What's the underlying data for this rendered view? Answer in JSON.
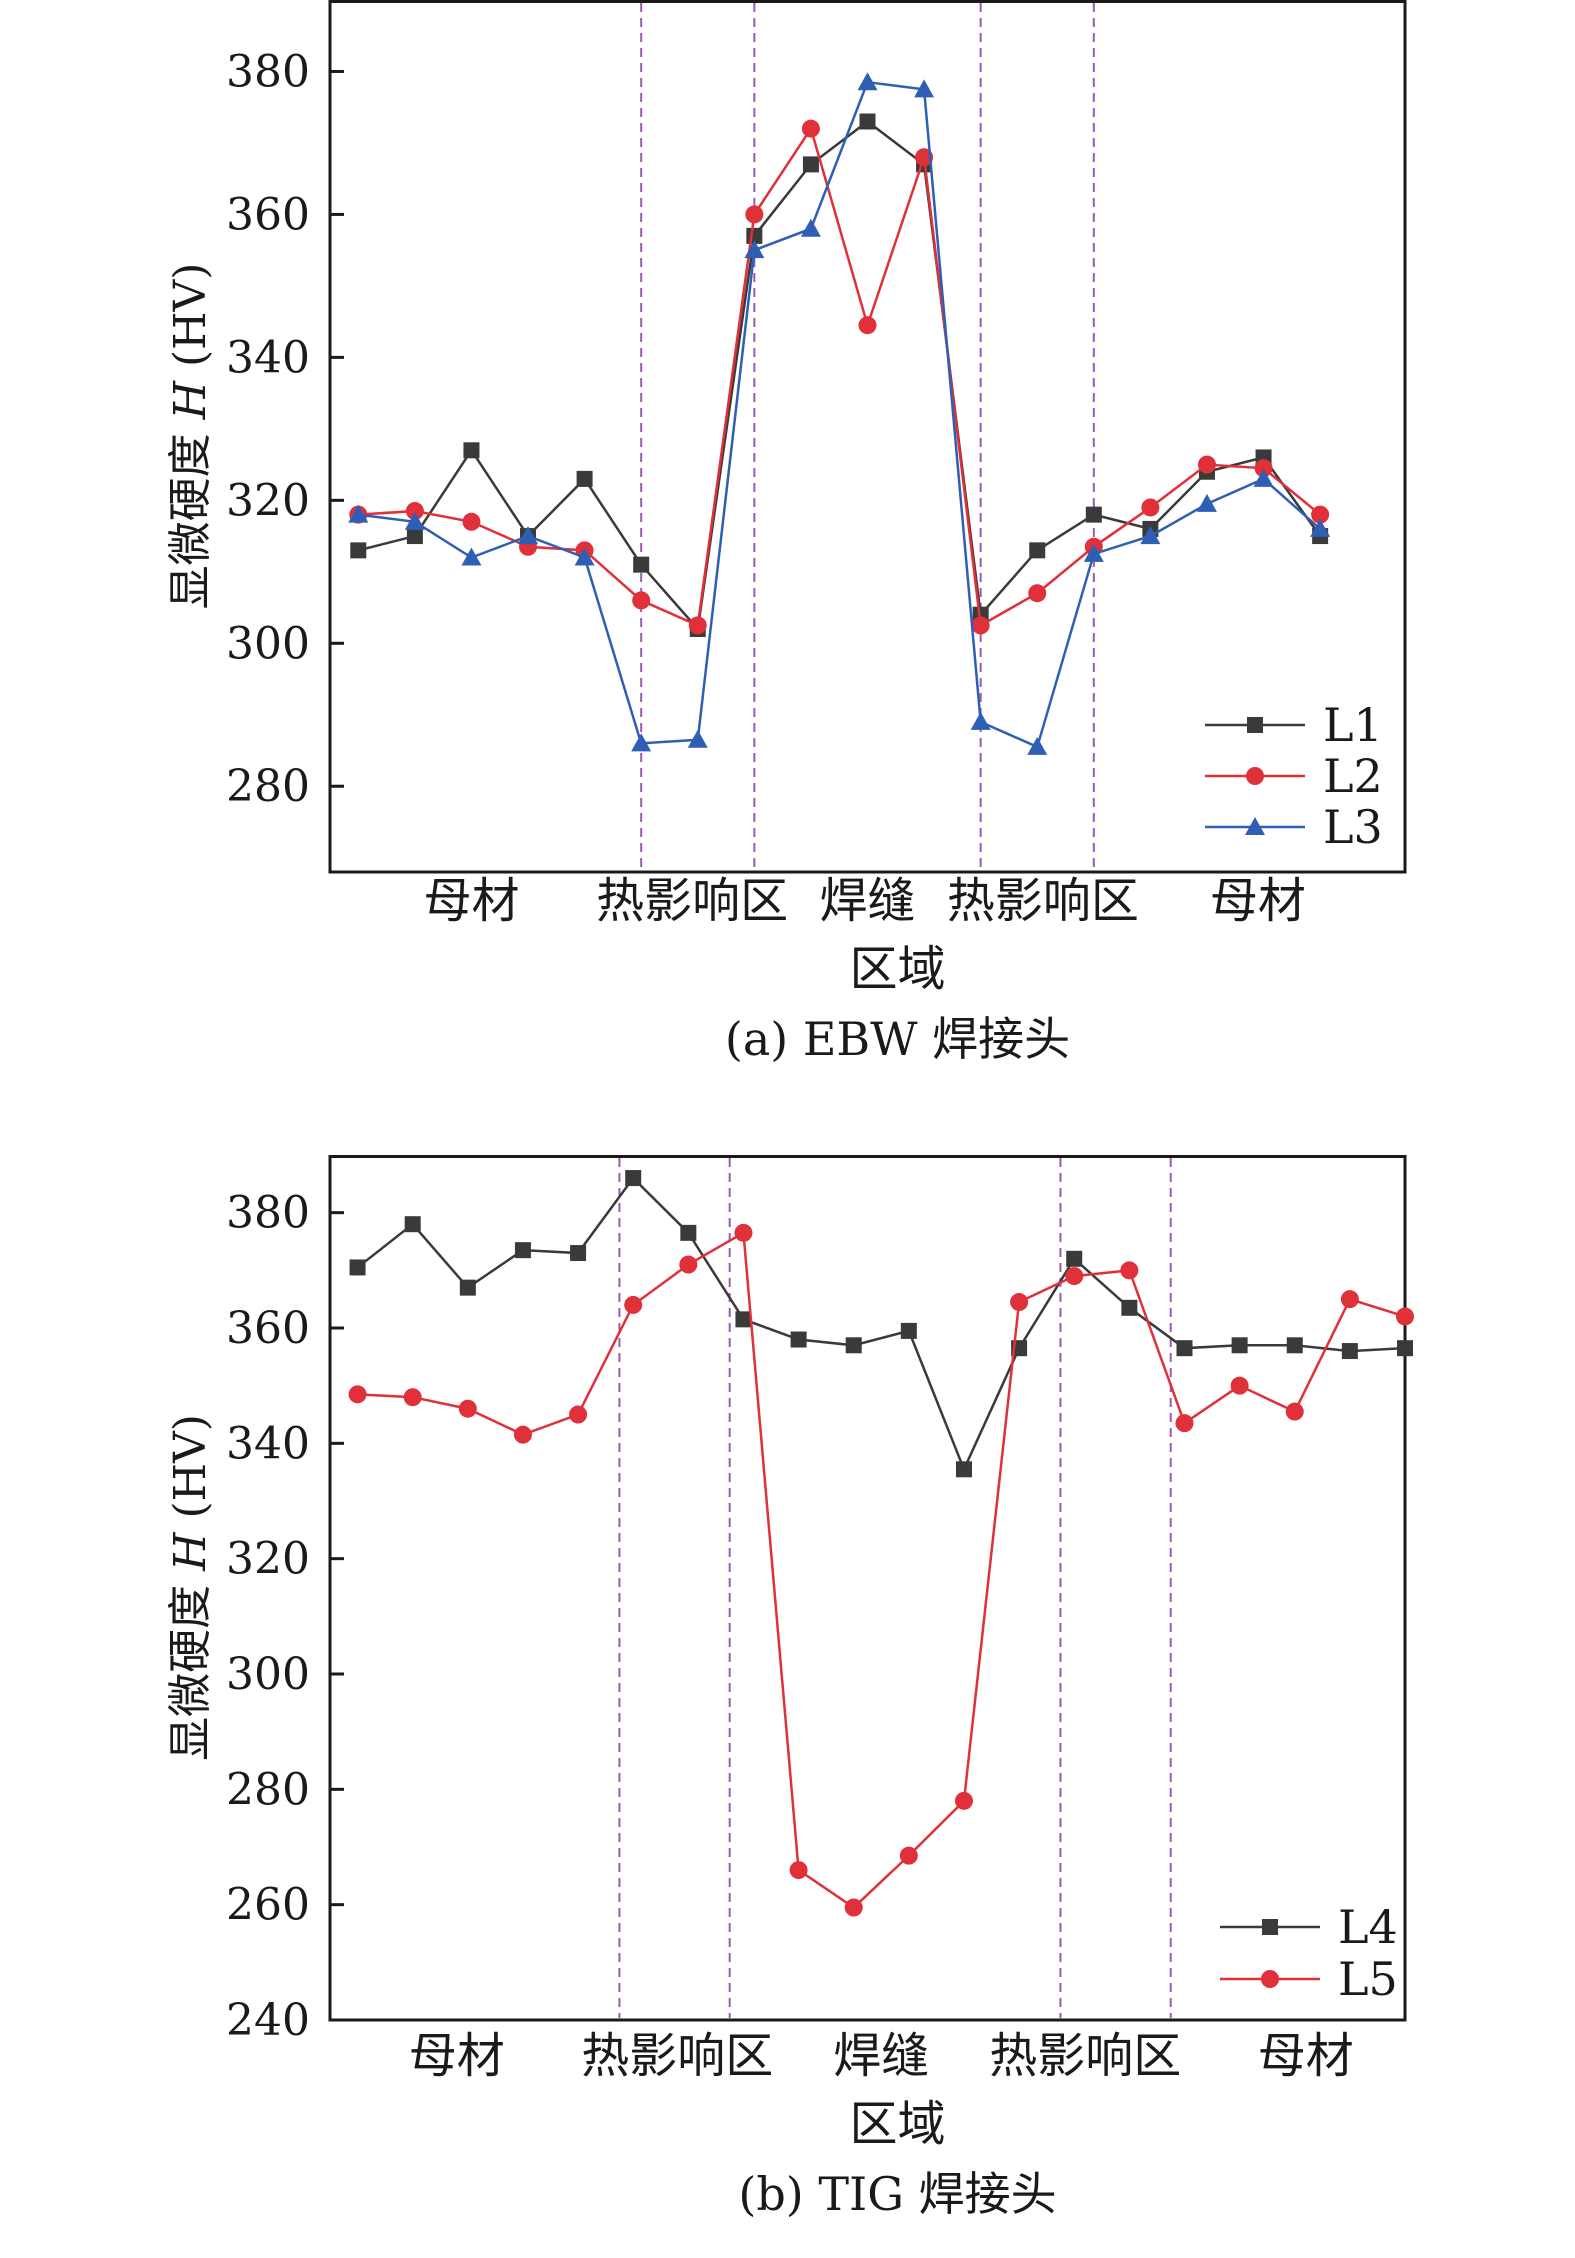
{
  "colors": {
    "L1": "#3a3a3a",
    "L2": "#e0303a",
    "L3": "#2f5fb5",
    "L4": "#3a3a3a",
    "L5": "#e0303a",
    "divider": "#9b59b6",
    "axis": "#1a1a1a"
  },
  "chart_data": [
    {
      "type": "line",
      "caption": "(a) EBW 焊接头",
      "ylabel_prefix": "显微硬度 ",
      "ylabel_italic": "H",
      "ylabel_suffix": " (HV)",
      "xlabel": "区域",
      "ylim": [
        268,
        390
      ],
      "yticks": [
        280,
        300,
        320,
        340,
        360,
        380
      ],
      "xlim": [
        0.5,
        19.5
      ],
      "region_labels": [
        {
          "text": "母材",
          "x": 3.0
        },
        {
          "text": "热影响区",
          "x": 6.9
        },
        {
          "text": "焊缝",
          "x": 10.0
        },
        {
          "text": "热影响区",
          "x": 13.1
        },
        {
          "text": "母材",
          "x": 16.9
        }
      ],
      "dividers": [
        6.0,
        8.0,
        12.0,
        14.0
      ],
      "legend_position": "bottom-right",
      "series": [
        {
          "name": "L1",
          "marker": "square",
          "x": [
            1,
            2,
            3,
            4,
            5,
            6,
            7,
            8,
            9,
            10,
            11,
            12,
            13,
            14,
            15,
            16,
            17,
            18
          ],
          "values": [
            313,
            315,
            327,
            315,
            323,
            311,
            302,
            357,
            367,
            373,
            367,
            304,
            313,
            318,
            316,
            324,
            326,
            315
          ]
        },
        {
          "name": "L2",
          "marker": "circle",
          "x": [
            1,
            2,
            3,
            4,
            5,
            6,
            7,
            8,
            9,
            10,
            11,
            12,
            13,
            14,
            15,
            16,
            17,
            18
          ],
          "values": [
            318,
            318.5,
            317,
            313.5,
            313,
            306,
            302.5,
            360,
            372,
            344.5,
            368,
            302.5,
            307,
            313.5,
            319,
            325,
            324.5,
            318
          ]
        },
        {
          "name": "L3",
          "marker": "triangle",
          "x": [
            1,
            2,
            3,
            4,
            5,
            6,
            7,
            8,
            9,
            10,
            11,
            12,
            13,
            14,
            15,
            16,
            17,
            18
          ],
          "values": [
            318,
            317,
            312,
            315,
            312,
            286,
            286.5,
            355,
            358,
            378.5,
            377.5,
            289,
            285.5,
            312.5,
            315,
            319.5,
            323,
            316
          ]
        }
      ]
    },
    {
      "type": "line",
      "caption": "(b) TIG 焊接头",
      "ylabel_prefix": "显微硬度 ",
      "ylabel_italic": "H",
      "ylabel_suffix": " (HV)",
      "xlabel": "区域",
      "ylim": [
        240,
        390
      ],
      "yticks": [
        240,
        260,
        280,
        300,
        320,
        340,
        360,
        380
      ],
      "xlim": [
        0.5,
        20.0
      ],
      "region_labels": [
        {
          "text": "母材",
          "x": 2.8
        },
        {
          "text": "热影响区",
          "x": 6.8
        },
        {
          "text": "焊缝",
          "x": 10.5
        },
        {
          "text": "热影响区",
          "x": 14.2
        },
        {
          "text": "母材",
          "x": 18.2
        }
      ],
      "dividers": [
        5.75,
        7.75,
        13.75,
        15.75
      ],
      "legend_position": "bottom-right",
      "series": [
        {
          "name": "L4",
          "marker": "square",
          "x": [
            1,
            2,
            3,
            4,
            5,
            6,
            7,
            8,
            9,
            10,
            11,
            12,
            13,
            14,
            15,
            16,
            17,
            18,
            19,
            20
          ],
          "values": [
            370.5,
            378,
            367,
            373.5,
            373,
            386,
            376.5,
            361.5,
            358,
            357,
            359.5,
            335.5,
            356.5,
            372,
            363.5,
            356.5,
            357,
            357,
            356,
            356.5
          ]
        },
        {
          "name": "L5",
          "marker": "circle",
          "x": [
            1,
            2,
            3,
            4,
            5,
            6,
            7,
            8,
            9,
            10,
            11,
            12,
            13,
            14,
            15,
            16,
            17,
            18,
            19,
            20
          ],
          "values": [
            348.5,
            348,
            346,
            341.5,
            345,
            364,
            371,
            376.5,
            266,
            259.5,
            268.5,
            278,
            364.5,
            369,
            370,
            343.5,
            350,
            345.5,
            365,
            362
          ]
        }
      ]
    }
  ]
}
